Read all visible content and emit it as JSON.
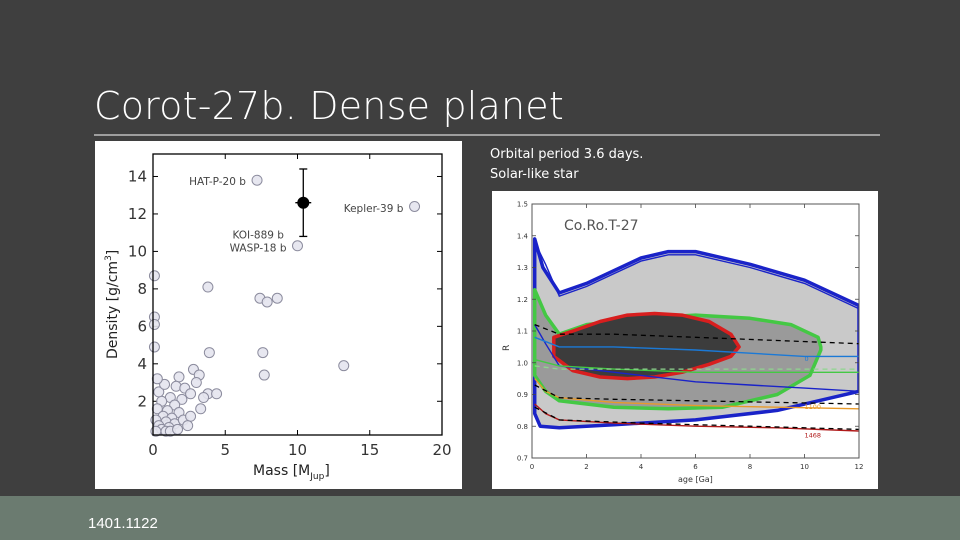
{
  "slide": {
    "title": "Corot-27b. Dense planet",
    "caption_line1": "Orbital period 3.6 days.",
    "caption_line2": "Solar-like star",
    "footer": "1401.1122"
  },
  "chart_data": [
    {
      "type": "scatter",
      "xlabel": "Mass [M",
      "xlabel_sub": "Jup",
      "xlabel_end": "]",
      "ylabel": "Density [g/cm",
      "ylabel_sup": "3",
      "ylabel_end": "]",
      "xlim": [
        0,
        20
      ],
      "ylim": [
        0.2,
        15.2
      ],
      "xticks": [
        "0",
        "5",
        "10",
        "15",
        "20"
      ],
      "yticks": [
        "2",
        "4",
        "6",
        "8",
        "10",
        "12",
        "14"
      ],
      "annotations": [
        {
          "text": "HAT-P-20 b",
          "x": 2.5,
          "y": 13.55
        },
        {
          "text": "Kepler-39 b",
          "x": 13.2,
          "y": 12.1
        },
        {
          "text": "KOI-889 b",
          "x": 5.5,
          "y": 10.7
        },
        {
          "text": "WASP-18 b",
          "x": 5.3,
          "y": 10.0
        }
      ],
      "highlight": {
        "x": 10.4,
        "y": 12.6,
        "yerr": 1.8,
        "xerr": 0.55
      },
      "points": [
        [
          7.2,
          13.8
        ],
        [
          18.1,
          12.4
        ],
        [
          10.0,
          10.3
        ],
        [
          3.8,
          8.1
        ],
        [
          7.4,
          7.5
        ],
        [
          8.6,
          7.5
        ],
        [
          7.9,
          7.3
        ],
        [
          3.9,
          4.6
        ],
        [
          7.6,
          4.6
        ],
        [
          13.2,
          3.9
        ],
        [
          7.7,
          3.4
        ],
        [
          0.1,
          8.7
        ],
        [
          0.1,
          6.5
        ],
        [
          0.1,
          6.1
        ],
        [
          0.1,
          4.9
        ],
        [
          1.8,
          3.3
        ],
        [
          2.8,
          3.7
        ],
        [
          3.2,
          3.4
        ],
        [
          3.0,
          3.0
        ],
        [
          1.6,
          2.8
        ],
        [
          2.2,
          2.7
        ],
        [
          2.6,
          2.4
        ],
        [
          3.8,
          2.4
        ],
        [
          4.4,
          2.4
        ],
        [
          1.2,
          2.2
        ],
        [
          2.0,
          2.1
        ],
        [
          0.6,
          2.0
        ],
        [
          1.5,
          1.8
        ],
        [
          0.3,
          1.6
        ],
        [
          1.0,
          1.5
        ],
        [
          1.8,
          1.4
        ],
        [
          0.7,
          1.2
        ],
        [
          1.3,
          1.1
        ],
        [
          0.2,
          1.0
        ],
        [
          0.9,
          0.9
        ],
        [
          1.5,
          0.8
        ],
        [
          0.4,
          0.7
        ],
        [
          1.1,
          0.6
        ],
        [
          0.6,
          0.5
        ],
        [
          0.2,
          0.4
        ],
        [
          0.9,
          0.4
        ],
        [
          2.1,
          1.0
        ],
        [
          2.6,
          1.2
        ],
        [
          3.3,
          1.6
        ],
        [
          0.4,
          2.5
        ],
        [
          0.8,
          2.9
        ],
        [
          1.2,
          0.4
        ],
        [
          1.7,
          0.5
        ],
        [
          0.3,
          3.2
        ],
        [
          3.5,
          2.2
        ],
        [
          2.4,
          0.7
        ]
      ]
    },
    {
      "type": "line",
      "title": "Co.Ro.T-27",
      "xlabel": "age [Ga]",
      "ylabel": "R",
      "xlim": [
        0,
        12
      ],
      "ylim": [
        0.7,
        1.5
      ],
      "xticks": [
        "0",
        "2",
        "4",
        "6",
        "8",
        "10",
        "12"
      ],
      "yticks": [
        "0.7",
        "0.8",
        "0.9",
        "1.0",
        "1.1",
        "1.2",
        "1.3",
        "1.4",
        "1.5"
      ],
      "colors": {
        "blue": "#1a23c8",
        "green": "#44c844",
        "red": "#d81e1e",
        "light_gray": "#c9c9c9",
        "gray": "#9a9a9a",
        "dark_gray": "#3c3c3c"
      },
      "line_labels": [
        {
          "text": "0",
          "x": 10.0,
          "y": 1.005,
          "color": "#1b79d6"
        },
        {
          "text": "1100",
          "x": 10.0,
          "y": 0.855,
          "color": "#e89a2a"
        },
        {
          "text": "1468",
          "x": 10.0,
          "y": 0.765,
          "color": "#b01a1a"
        }
      ],
      "series": [
        {
          "color": "#1a23c8",
          "dashed": false,
          "values": [
            [
              0.1,
              1.38
            ],
            [
              0.5,
              1.31
            ],
            [
              1,
              1.21
            ],
            [
              2,
              1.24
            ],
            [
              3,
              1.28
            ],
            [
              4,
              1.32
            ],
            [
              5,
              1.34
            ],
            [
              6,
              1.34
            ],
            [
              8,
              1.3
            ],
            [
              10,
              1.25
            ],
            [
              12,
              1.17
            ]
          ]
        },
        {
          "color": "#1a23c8",
          "dashed": false,
          "values": [
            [
              0.1,
              1.12
            ],
            [
              0.5,
              1.06
            ],
            [
              1,
              0.99
            ],
            [
              2,
              0.98
            ],
            [
              4,
              0.96
            ],
            [
              6,
              0.94
            ],
            [
              8,
              0.93
            ],
            [
              10,
              0.92
            ],
            [
              12,
              0.91
            ]
          ]
        },
        {
          "color": "#1b79d6",
          "dashed": false,
          "values": [
            [
              0.1,
              1.08
            ],
            [
              1,
              1.05
            ],
            [
              3,
              1.05
            ],
            [
              6,
              1.04
            ],
            [
              8,
              1.03
            ],
            [
              10,
              1.02
            ],
            [
              12,
              1.02
            ]
          ]
        },
        {
          "color": "#000000",
          "dashed": true,
          "values": [
            [
              0.1,
              1.12
            ],
            [
              1,
              1.09
            ],
            [
              3,
              1.09
            ],
            [
              6,
              1.08
            ],
            [
              9,
              1.07
            ],
            [
              12,
              1.06
            ]
          ]
        },
        {
          "color": "#44c844",
          "dashed": false,
          "values": [
            [
              0.1,
              1.01
            ],
            [
              1,
              0.99
            ],
            [
              3,
              0.98
            ],
            [
              6,
              0.97
            ],
            [
              9,
              0.97
            ],
            [
              12,
              0.97
            ]
          ]
        },
        {
          "color": "#8ed68e",
          "dashed": true,
          "values": [
            [
              0.1,
              0.99
            ],
            [
              1,
              0.98
            ],
            [
              4,
              0.98
            ],
            [
              8,
              0.98
            ],
            [
              12,
              0.98
            ]
          ]
        },
        {
          "color": "#e89a2a",
          "dashed": false,
          "values": [
            [
              0.1,
              0.95
            ],
            [
              0.5,
              0.91
            ],
            [
              1,
              0.89
            ],
            [
              3,
              0.875
            ],
            [
              6,
              0.865
            ],
            [
              9,
              0.86
            ],
            [
              12,
              0.855
            ]
          ]
        },
        {
          "color": "#000000",
          "dashed": true,
          "values": [
            [
              0.1,
              0.93
            ],
            [
              1,
              0.89
            ],
            [
              3,
              0.885
            ],
            [
              6,
              0.88
            ],
            [
              9,
              0.875
            ],
            [
              12,
              0.87
            ]
          ]
        },
        {
          "color": "#b01a1a",
          "dashed": false,
          "values": [
            [
              0.1,
              0.87
            ],
            [
              0.5,
              0.84
            ],
            [
              1,
              0.82
            ],
            [
              3,
              0.81
            ],
            [
              6,
              0.8
            ],
            [
              9,
              0.795
            ],
            [
              12,
              0.785
            ]
          ]
        },
        {
          "color": "#000000",
          "dashed": true,
          "values": [
            [
              0.1,
              0.86
            ],
            [
              1,
              0.82
            ],
            [
              4,
              0.81
            ],
            [
              8,
              0.8
            ],
            [
              12,
              0.79
            ]
          ]
        }
      ]
    }
  ]
}
